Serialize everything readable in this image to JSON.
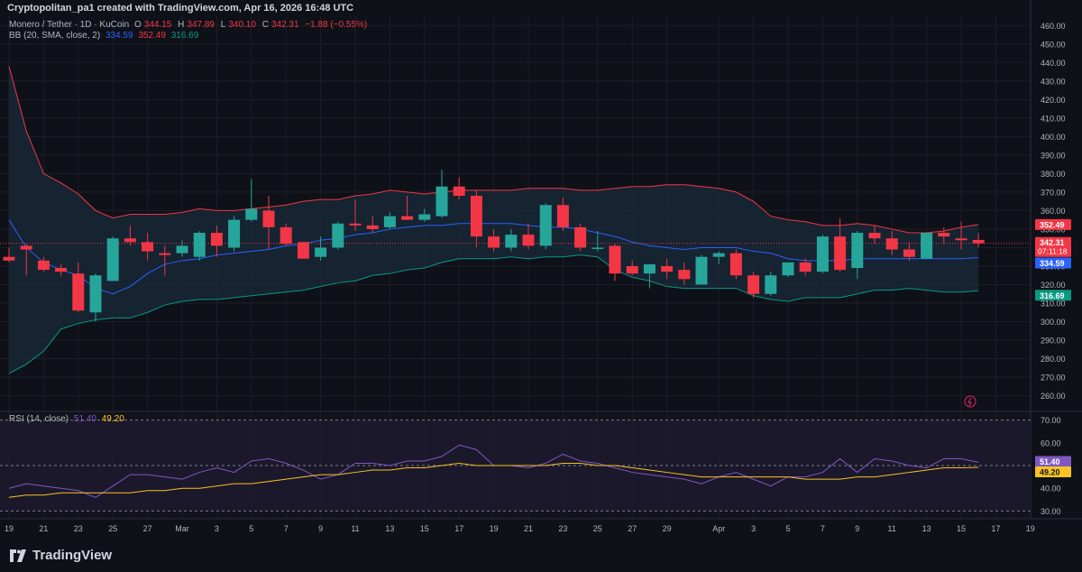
{
  "header": {
    "credit": "Cryptopolitan_pa1 created with TradingView.com, Apr 16, 2026 16:48 UTC"
  },
  "legend": {
    "symbol": "Monero / Tether · 1D · KuCoin",
    "o_label": "O",
    "o_value": "344.15",
    "h_label": "H",
    "h_value": "347.89",
    "l_label": "L",
    "l_value": "340.10",
    "c_label": "C",
    "c_value": "342.31",
    "change": "−1.88 (−0.55%)",
    "bb_label": "BB (20, SMA, close, 2)",
    "bb_basis": "334.59",
    "bb_upper": "352.49",
    "bb_lower": "316.69",
    "rsi_label": "RSI (14, close)",
    "rsi_value": "51.40",
    "rsi_ma": "49.20"
  },
  "brand": {
    "name": "TradingView"
  },
  "colors": {
    "up": "#26a69a",
    "down": "#f23645",
    "basis": "#2962ff",
    "upper": "#f23645",
    "lower": "#089981",
    "rsi": "#7e57c2",
    "rsi_ma": "#f7c325",
    "band_fill": "#1a2a3a",
    "rsi_fill": "#1e1a2e"
  },
  "chart_data": [
    {
      "type": "candlestick",
      "title": "Monero / Tether · 1D · KuCoin",
      "ylim": [
        252,
        465
      ],
      "y_ticks": [
        260,
        270,
        280,
        290,
        300,
        310,
        320,
        330,
        340,
        350,
        360,
        370,
        380,
        390,
        400,
        410,
        420,
        430,
        440,
        450,
        460
      ],
      "x_tick_labels": [
        {
          "i": 0,
          "t": "19"
        },
        {
          "i": 2,
          "t": "21"
        },
        {
          "i": 4,
          "t": "23"
        },
        {
          "i": 6,
          "t": "25"
        },
        {
          "i": 8,
          "t": "27"
        },
        {
          "i": 10,
          "t": "Mar"
        },
        {
          "i": 12,
          "t": "3"
        },
        {
          "i": 14,
          "t": "5"
        },
        {
          "i": 16,
          "t": "7"
        },
        {
          "i": 18,
          "t": "9"
        },
        {
          "i": 20,
          "t": "11"
        },
        {
          "i": 22,
          "t": "13"
        },
        {
          "i": 24,
          "t": "15"
        },
        {
          "i": 26,
          "t": "17"
        },
        {
          "i": 28,
          "t": "19"
        },
        {
          "i": 30,
          "t": "21"
        },
        {
          "i": 32,
          "t": "23"
        },
        {
          "i": 34,
          "t": "25"
        },
        {
          "i": 36,
          "t": "27"
        },
        {
          "i": 38,
          "t": "29"
        },
        {
          "i": 41,
          "t": "Apr"
        },
        {
          "i": 43,
          "t": "3"
        },
        {
          "i": 45,
          "t": "5"
        },
        {
          "i": 47,
          "t": "7"
        },
        {
          "i": 49,
          "t": "9"
        },
        {
          "i": 51,
          "t": "11"
        },
        {
          "i": 53,
          "t": "13"
        },
        {
          "i": 55,
          "t": "15"
        },
        {
          "i": 57,
          "t": "17"
        },
        {
          "i": 59,
          "t": "19"
        }
      ],
      "candles": [
        {
          "o": 335,
          "h": 340,
          "l": 332,
          "c": 333
        },
        {
          "o": 341,
          "h": 342,
          "l": 325,
          "c": 339
        },
        {
          "o": 333,
          "h": 335,
          "l": 327,
          "c": 328
        },
        {
          "o": 329,
          "h": 331,
          "l": 325,
          "c": 327
        },
        {
          "o": 326,
          "h": 332,
          "l": 305,
          "c": 306
        },
        {
          "o": 305,
          "h": 326,
          "l": 300,
          "c": 325
        },
        {
          "o": 322,
          "h": 346,
          "l": 322,
          "c": 345
        },
        {
          "o": 345,
          "h": 352,
          "l": 341,
          "c": 343
        },
        {
          "o": 343,
          "h": 348,
          "l": 333,
          "c": 338
        },
        {
          "o": 337,
          "h": 341,
          "l": 325,
          "c": 336
        },
        {
          "o": 337,
          "h": 344,
          "l": 335,
          "c": 341
        },
        {
          "o": 335,
          "h": 349,
          "l": 333,
          "c": 348
        },
        {
          "o": 348,
          "h": 352,
          "l": 335,
          "c": 341
        },
        {
          "o": 340,
          "h": 357,
          "l": 338,
          "c": 355
        },
        {
          "o": 355,
          "h": 377,
          "l": 354,
          "c": 361
        },
        {
          "o": 360,
          "h": 368,
          "l": 339,
          "c": 351
        },
        {
          "o": 351,
          "h": 353,
          "l": 341,
          "c": 342
        },
        {
          "o": 343,
          "h": 343,
          "l": 335,
          "c": 334
        },
        {
          "o": 335,
          "h": 346,
          "l": 333,
          "c": 340
        },
        {
          "o": 340,
          "h": 354,
          "l": 339,
          "c": 353
        },
        {
          "o": 353,
          "h": 366,
          "l": 349,
          "c": 352
        },
        {
          "o": 352,
          "h": 357,
          "l": 348,
          "c": 350
        },
        {
          "o": 351,
          "h": 359,
          "l": 350,
          "c": 357
        },
        {
          "o": 357,
          "h": 368,
          "l": 356,
          "c": 355
        },
        {
          "o": 355,
          "h": 361,
          "l": 354,
          "c": 358
        },
        {
          "o": 357,
          "h": 382,
          "l": 356,
          "c": 373
        },
        {
          "o": 373,
          "h": 378,
          "l": 366,
          "c": 368
        },
        {
          "o": 368,
          "h": 371,
          "l": 340,
          "c": 346
        },
        {
          "o": 346,
          "h": 350,
          "l": 338,
          "c": 340
        },
        {
          "o": 340,
          "h": 350,
          "l": 338,
          "c": 347
        },
        {
          "o": 347,
          "h": 353,
          "l": 339,
          "c": 341
        },
        {
          "o": 341,
          "h": 364,
          "l": 339,
          "c": 363
        },
        {
          "o": 363,
          "h": 367,
          "l": 349,
          "c": 351
        },
        {
          "o": 351,
          "h": 353,
          "l": 338,
          "c": 340
        },
        {
          "o": 340,
          "h": 349,
          "l": 338,
          "c": 340
        },
        {
          "o": 341,
          "h": 342,
          "l": 322,
          "c": 326
        },
        {
          "o": 330,
          "h": 333,
          "l": 325,
          "c": 326
        },
        {
          "o": 326,
          "h": 331,
          "l": 318,
          "c": 331
        },
        {
          "o": 330,
          "h": 334,
          "l": 323,
          "c": 327
        },
        {
          "o": 328,
          "h": 332,
          "l": 320,
          "c": 323
        },
        {
          "o": 320,
          "h": 336,
          "l": 320,
          "c": 335
        },
        {
          "o": 335,
          "h": 338,
          "l": 331,
          "c": 337
        },
        {
          "o": 337,
          "h": 339,
          "l": 323,
          "c": 325
        },
        {
          "o": 325,
          "h": 327,
          "l": 313,
          "c": 315
        },
        {
          "o": 315,
          "h": 327,
          "l": 314,
          "c": 325
        },
        {
          "o": 325,
          "h": 332,
          "l": 324,
          "c": 332
        },
        {
          "o": 332,
          "h": 334,
          "l": 325,
          "c": 327
        },
        {
          "o": 327,
          "h": 347,
          "l": 326,
          "c": 346
        },
        {
          "o": 346,
          "h": 356,
          "l": 327,
          "c": 328
        },
        {
          "o": 329,
          "h": 349,
          "l": 323,
          "c": 348
        },
        {
          "o": 348,
          "h": 352,
          "l": 342,
          "c": 345
        },
        {
          "o": 345,
          "h": 349,
          "l": 336,
          "c": 339
        },
        {
          "o": 339,
          "h": 343,
          "l": 333,
          "c": 335
        },
        {
          "o": 334,
          "h": 348,
          "l": 334,
          "c": 348
        },
        {
          "o": 348,
          "h": 351,
          "l": 342,
          "c": 346
        },
        {
          "o": 345,
          "h": 354,
          "l": 339,
          "c": 344
        },
        {
          "o": 344.15,
          "h": 347.89,
          "l": 340.1,
          "c": 342.31
        }
      ],
      "bb_upper": [
        438,
        403,
        380,
        375,
        369,
        360,
        356,
        358,
        358,
        358,
        359,
        361,
        360,
        360,
        361,
        362,
        363,
        365,
        366,
        366,
        368,
        369,
        371,
        370,
        369,
        370,
        371,
        371,
        371,
        371,
        372,
        372,
        372,
        371,
        371,
        372,
        373,
        373,
        374,
        374,
        373,
        372,
        370,
        365,
        357,
        355,
        354,
        352,
        352,
        353,
        352,
        350,
        348,
        348,
        349,
        351,
        352.49
      ],
      "bb_basis": [
        355,
        340,
        332,
        328,
        325,
        318,
        315,
        319,
        326,
        331,
        333,
        334,
        336,
        337,
        338,
        339,
        341,
        342,
        344,
        345,
        347,
        348,
        350,
        351,
        352,
        352,
        353,
        353,
        353,
        353,
        352,
        351,
        351,
        350,
        348,
        346,
        343,
        341,
        340,
        339,
        340,
        340,
        340,
        338,
        337,
        334,
        333,
        333,
        333,
        334,
        334,
        334,
        334,
        334,
        334,
        334,
        334.59
      ],
      "bb_lower": [
        272,
        277,
        284,
        296,
        299,
        301,
        302,
        302,
        305,
        309,
        311,
        312,
        312,
        313,
        314,
        315,
        316,
        317,
        319,
        321,
        322,
        325,
        326,
        328,
        329,
        332,
        334,
        334,
        334,
        335,
        334,
        335,
        335,
        336,
        335,
        328,
        324,
        322,
        319,
        318,
        318,
        318,
        318,
        314,
        312,
        311,
        313,
        313,
        313,
        315,
        317,
        317,
        318,
        317,
        316,
        316,
        316.69
      ]
    },
    {
      "type": "line",
      "title": "RSI (14, close)",
      "ylim": [
        27,
        73
      ],
      "y_ticks": [
        30,
        40,
        50,
        60,
        70
      ],
      "levels": [
        70,
        50,
        30
      ],
      "series": [
        {
          "key": "rsi",
          "values": [
            40,
            42,
            41,
            40,
            39,
            36,
            41,
            46,
            46,
            45,
            44,
            47,
            49,
            47,
            52,
            53,
            51,
            48,
            44,
            46,
            51,
            51,
            50,
            52,
            52,
            54,
            59,
            57,
            50,
            50,
            49,
            51,
            55,
            52,
            51,
            49,
            47,
            46,
            45,
            44,
            42,
            45,
            47,
            44,
            41,
            45,
            45,
            47,
            53,
            47,
            53,
            52,
            50,
            49,
            53,
            53,
            51.4
          ]
        },
        {
          "key": "rsi_ma",
          "values": [
            36,
            37,
            37,
            38,
            38,
            38,
            38,
            38,
            39,
            39,
            40,
            40,
            41,
            42,
            42,
            43,
            44,
            45,
            46,
            46,
            47,
            48,
            48,
            49,
            49,
            50,
            51,
            50,
            50,
            50,
            50,
            50,
            51,
            51,
            50,
            50,
            49,
            48,
            47,
            46,
            45,
            45,
            45,
            45,
            45,
            45,
            44,
            44,
            44,
            45,
            45,
            46,
            47,
            48,
            49,
            49,
            49.2
          ]
        }
      ]
    }
  ],
  "price_labels": {
    "upper": "352.49",
    "close": "342.31",
    "countdown": "07:11:18",
    "basis": "334.59",
    "lower": "316.69"
  },
  "rsi_labels": {
    "rsi": "51.40",
    "ma": "49.20"
  }
}
